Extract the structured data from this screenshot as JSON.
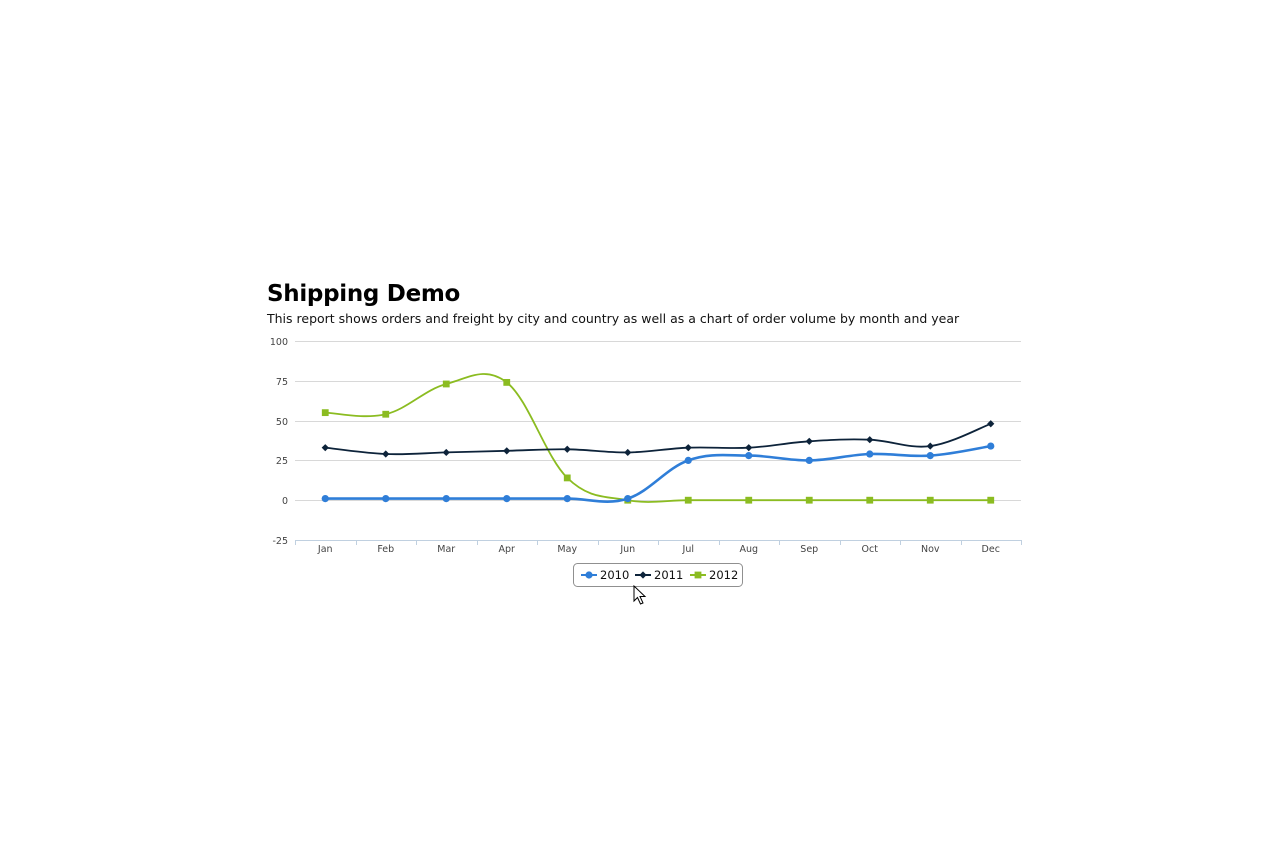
{
  "report": {
    "title": "Shipping Demo",
    "subtitle": "This report shows orders and freight by city and country as well as a chart of order volume by month and year"
  },
  "chart_data": {
    "type": "line",
    "categories": [
      "Jan",
      "Feb",
      "Mar",
      "Apr",
      "May",
      "Jun",
      "Jul",
      "Aug",
      "Sep",
      "Oct",
      "Nov",
      "Dec"
    ],
    "ylim": [
      -25,
      100
    ],
    "yticks": [
      100,
      75,
      50,
      25,
      0,
      -25
    ],
    "grid": true,
    "legend": "bottom-center",
    "series": [
      {
        "name": "2010",
        "color": "#2f7ed8",
        "marker": "circle",
        "values": [
          1,
          1,
          1,
          1,
          1,
          1,
          25,
          28,
          25,
          29,
          28,
          34
        ]
      },
      {
        "name": "2011",
        "color": "#0d233a",
        "marker": "diamond",
        "values": [
          33,
          29,
          30,
          31,
          32,
          30,
          33,
          33,
          37,
          38,
          34,
          48
        ]
      },
      {
        "name": "2012",
        "color": "#8bbc21",
        "marker": "square",
        "values": [
          55,
          54,
          73,
          74,
          14,
          0,
          0,
          0,
          0,
          0,
          0,
          0
        ]
      }
    ]
  }
}
